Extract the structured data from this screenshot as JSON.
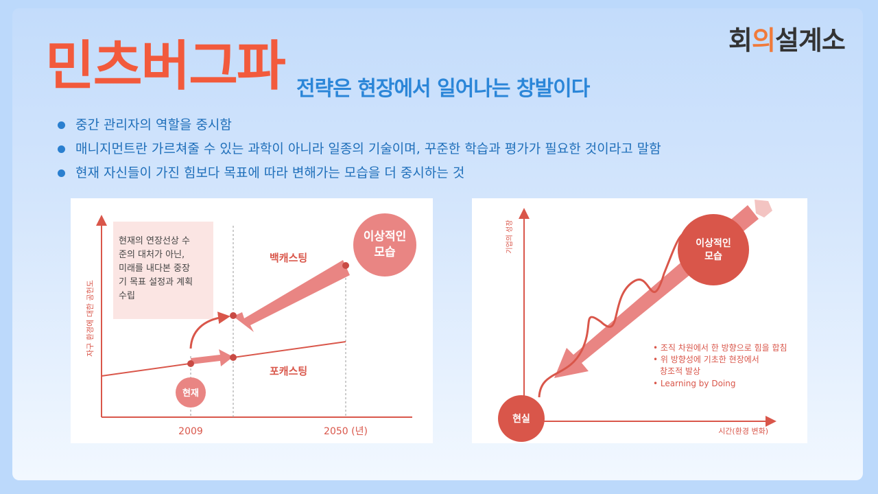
{
  "logo": {
    "text_a": "회",
    "text_b": "의",
    "text_c": "설계소"
  },
  "title": "민츠버그파",
  "subtitle": "전략은 현장에서 일어나는 창발이다",
  "bullets": [
    "중간 관리자의 역할을 중시함",
    "매니지먼트란 가르쳐줄 수 있는 과학이 아니라 일종의 기술이며, 꾸준한 학습과 평가가 필요한 것이라고 말함",
    "현재 자신들이 가진 힘보다 목표에 따라 변해가는 모습을 더 중시하는 것"
  ],
  "left_diagram": {
    "y_axis_label": "자구 환경에 대한 공헌도",
    "note_lines": [
      "현재의 연장선상 수",
      "준의 대처가 아닌,",
      "미래를 내다본 중장",
      "기 목표 설정과 계획",
      "수립"
    ],
    "ideal_lines": [
      "이상적인",
      "모습"
    ],
    "backcasting": "백캐스팅",
    "forecasting": "포캐스팅",
    "current": "현재",
    "x_ticks": [
      "2009",
      "2050 (년)"
    ]
  },
  "right_diagram": {
    "y_axis_label": "기업의 성장",
    "x_axis_label": "시간(환경 변화)",
    "ideal_lines": [
      "이상적인",
      "모습"
    ],
    "reality": "현실",
    "notes": [
      "• 조직 차원에서 한 방향으로 힘을 합침",
      "• 위 방향성에 기초한 현장에서",
      "창조적 발상",
      "• Learning by Doing"
    ]
  },
  "colors": {
    "title": "#f25a3c",
    "subtitle": "#2b86d8",
    "accent_red": "#d9564a",
    "arrow_pink": "#e98583"
  }
}
